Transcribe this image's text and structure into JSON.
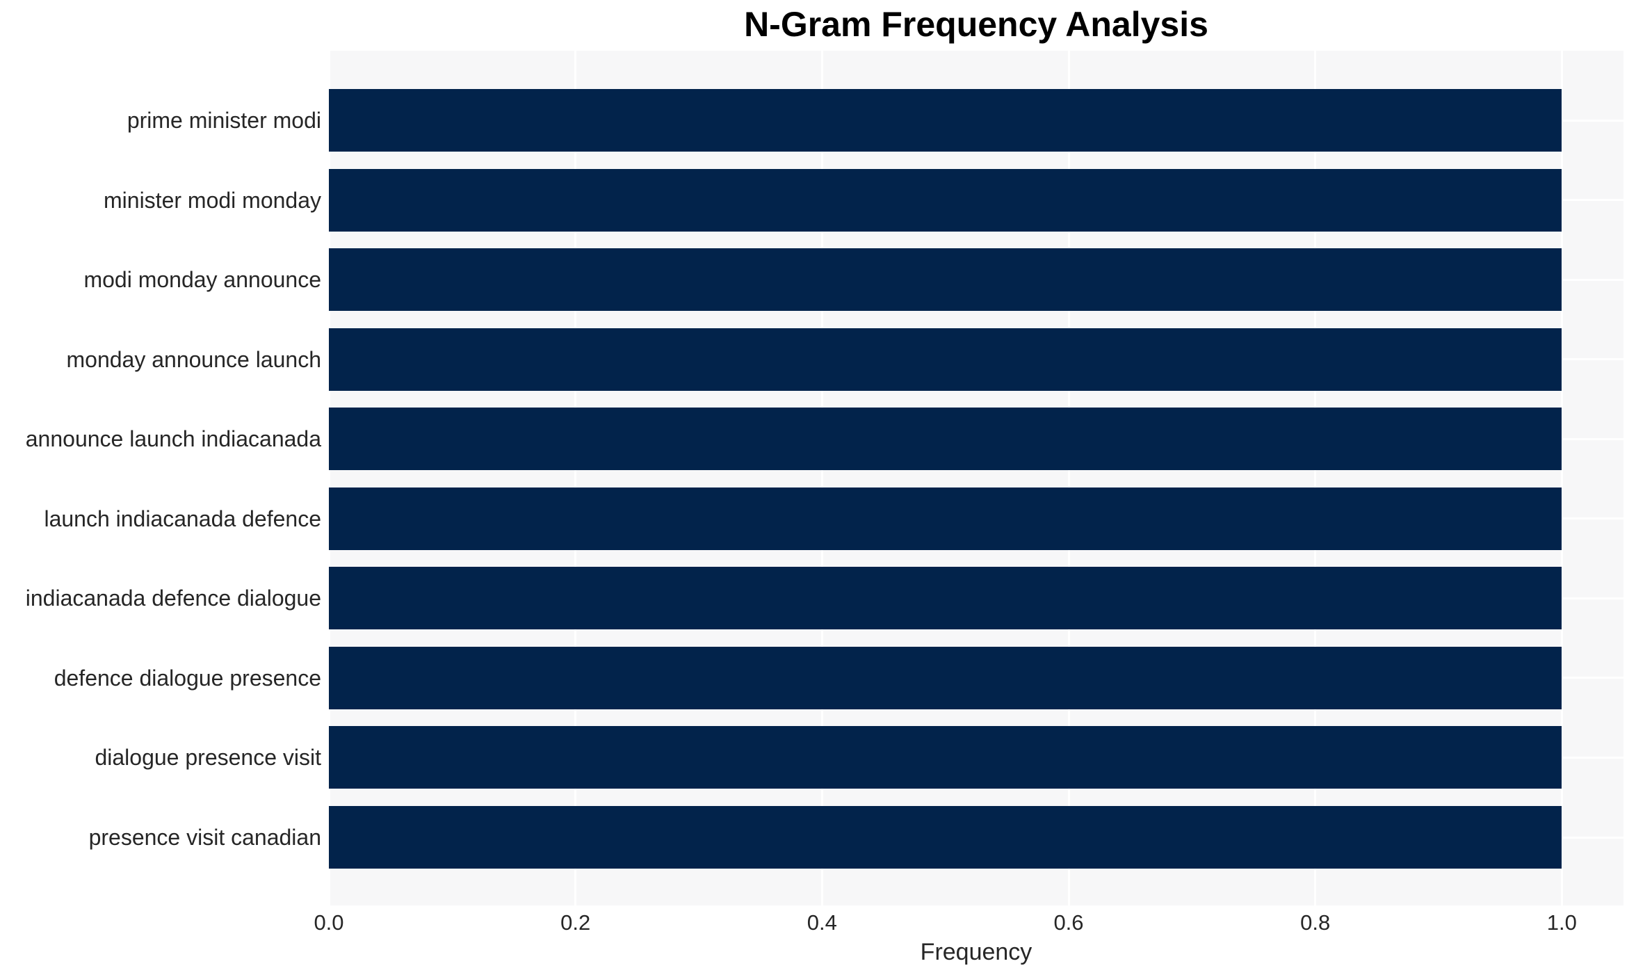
{
  "chart_data": {
    "type": "bar",
    "orientation": "horizontal",
    "title": "N-Gram Frequency Analysis",
    "xlabel": "Frequency",
    "ylabel": "",
    "categories": [
      "prime minister modi",
      "minister modi monday",
      "modi monday announce",
      "monday announce launch",
      "announce launch indiacanada",
      "launch indiacanada defence",
      "indiacanada defence dialogue",
      "defence dialogue presence",
      "dialogue presence visit",
      "presence visit canadian"
    ],
    "values": [
      1.0,
      1.0,
      1.0,
      1.0,
      1.0,
      1.0,
      1.0,
      1.0,
      1.0,
      1.0
    ],
    "xlim": [
      0,
      1.05
    ],
    "xtick_values": [
      0.0,
      0.2,
      0.4,
      0.6,
      0.8,
      1.0
    ],
    "xtick_labels": [
      "0.0",
      "0.2",
      "0.4",
      "0.6",
      "0.8",
      "1.0"
    ],
    "grid": "on",
    "legend": "none"
  },
  "colors": {
    "bar": "#02234B",
    "plot_bg": "#F7F7F8",
    "grid": "#FFFFFF",
    "figure_bg": "#FFFFFF",
    "title_text": "#000000",
    "axis_text": "#262626"
  }
}
